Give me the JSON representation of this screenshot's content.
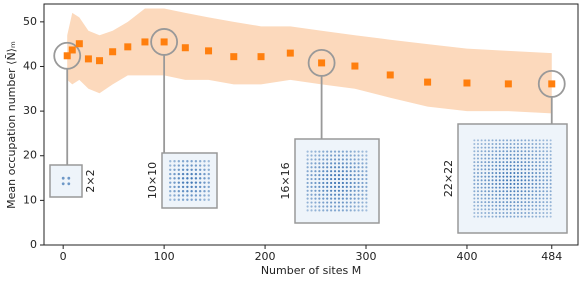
{
  "chart_data": {
    "type": "scatter",
    "xlabel": "Number of sites M",
    "ylabel": "Mean occupation number ⟨N̄⟩ₘ",
    "x": [
      4,
      9,
      16,
      25,
      36,
      49,
      64,
      81,
      100,
      121,
      144,
      169,
      196,
      225,
      256,
      289,
      324,
      361,
      400,
      441,
      484
    ],
    "values": [
      42.4,
      43.7,
      45.1,
      41.7,
      41.3,
      43.3,
      44.4,
      45.5,
      45.5,
      44.2,
      43.5,
      42.2,
      42.2,
      43.0,
      40.8,
      40.1,
      38.1,
      36.5,
      36.3,
      36.1,
      36.1
    ],
    "color": "#ff7f0e",
    "band": {
      "color": "#fcd9bc",
      "upper": [
        47,
        52,
        51,
        48,
        47,
        48,
        50,
        53,
        53,
        52,
        51,
        50,
        49,
        49,
        48,
        47,
        46,
        45,
        44,
        43.5,
        43
      ],
      "lower": [
        37,
        36,
        37,
        35,
        34,
        36,
        38,
        38,
        38,
        37,
        37,
        36,
        36,
        37,
        36,
        35,
        33,
        31,
        30,
        30,
        29.5
      ]
    },
    "xlim": [
      -19,
      510
    ],
    "xticks": [
      0,
      100,
      200,
      300,
      400,
      484
    ],
    "ylim": [
      0,
      54
    ],
    "yticks": [
      0,
      10,
      20,
      30,
      40,
      50
    ],
    "insets": [
      {
        "label": "2×2",
        "M": 4
      },
      {
        "label": "10×10",
        "M": 100
      },
      {
        "label": "16×16",
        "M": 256
      },
      {
        "label": "22×22",
        "M": 484
      }
    ]
  }
}
